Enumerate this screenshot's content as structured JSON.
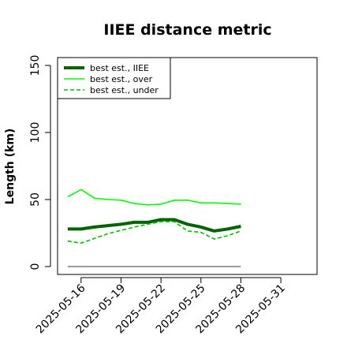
{
  "chart_data": {
    "type": "line",
    "title": "IIEE distance metric",
    "xlabel": "",
    "ylabel": "Length (km)",
    "ylim": [
      0,
      150
    ],
    "yticks": [
      0,
      50,
      100,
      150
    ],
    "xlim": [
      "2025-05-14",
      "2025-06-01"
    ],
    "xticks": [
      "2025-05-16",
      "2025-05-19",
      "2025-05-22",
      "2025-05-25",
      "2025-05-28",
      "2025-05-31"
    ],
    "x": [
      "2025-05-15",
      "2025-05-16",
      "2025-05-17",
      "2025-05-18",
      "2025-05-19",
      "2025-05-20",
      "2025-05-21",
      "2025-05-22",
      "2025-05-23",
      "2025-05-24",
      "2025-05-25",
      "2025-05-26",
      "2025-05-27",
      "2025-05-28"
    ],
    "series": [
      {
        "name": "best est., IIEE",
        "color": "#006400",
        "style": "solid-thick",
        "values": [
          28,
          28,
          29.5,
          30.5,
          31.5,
          33,
          33,
          35,
          35,
          31.5,
          29.5,
          26.5,
          28,
          30
        ]
      },
      {
        "name": "best est., over",
        "color": "#00ff00",
        "style": "solid",
        "values": [
          52,
          57.5,
          51,
          50,
          49.5,
          47,
          46,
          46.5,
          49.5,
          49.5,
          47.5,
          47.5,
          47,
          46.5
        ]
      },
      {
        "name": "best est., under",
        "color": "#00c000",
        "style": "dashed",
        "values": [
          19,
          17.5,
          21,
          24.5,
          27,
          29.5,
          31.5,
          33.5,
          33.5,
          26.5,
          25.5,
          20.5,
          23,
          26.5
        ]
      },
      {
        "name": "",
        "color": "#606060",
        "style": "thin",
        "values": [
          0,
          0,
          0,
          0,
          0,
          0,
          0,
          0,
          0,
          0,
          0,
          0,
          0,
          0
        ]
      }
    ],
    "legend_position": "top-left",
    "grid": false
  }
}
